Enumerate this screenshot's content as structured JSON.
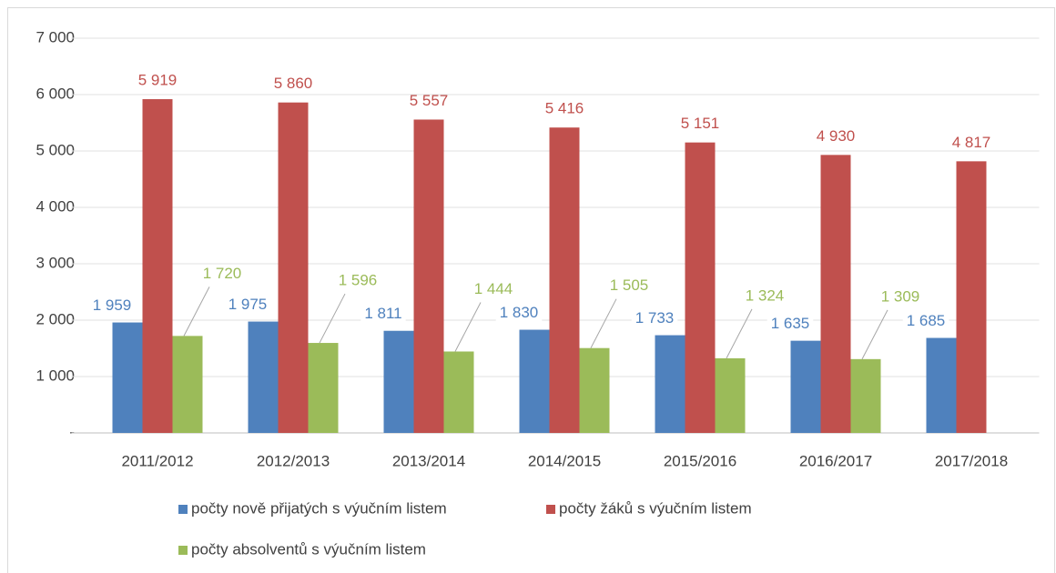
{
  "chart_data": {
    "type": "bar",
    "categories": [
      "2011/2012",
      "2012/2013",
      "2013/2014",
      "2014/2015",
      "2015/2016",
      "2016/2017",
      "2017/2018"
    ],
    "series": [
      {
        "name": "počty nově přijatých s výučním listem",
        "color": "#4f81bd",
        "values": [
          1959,
          1975,
          1811,
          1830,
          1733,
          1635,
          1685
        ],
        "value_labels": [
          "1 959",
          "1 975",
          "1 811",
          "1 830",
          "1 733",
          "1 635",
          "1 685"
        ]
      },
      {
        "name": "počty žáků s výučním listem",
        "color": "#c0504d",
        "values": [
          5919,
          5860,
          5557,
          5416,
          5151,
          4930,
          4817
        ],
        "value_labels": [
          "5 919",
          "5 860",
          "5 557",
          "5 416",
          "5 151",
          "4 930",
          "4 817"
        ]
      },
      {
        "name": "počty absolventů s výučním listem",
        "color": "#9bbb59",
        "values": [
          1720,
          1596,
          1444,
          1505,
          1324,
          1309,
          null
        ],
        "value_labels": [
          "1 720",
          "1 596",
          "1 444",
          "1 505",
          "1 324",
          "1 309",
          null
        ]
      }
    ],
    "ylim": [
      0,
      7000
    ],
    "yticks": [
      {
        "value": 0,
        "label": "-"
      },
      {
        "value": 1000,
        "label": "1 000"
      },
      {
        "value": 2000,
        "label": "2 000"
      },
      {
        "value": 3000,
        "label": "3 000"
      },
      {
        "value": 4000,
        "label": "4 000"
      },
      {
        "value": 5000,
        "label": "5 000"
      },
      {
        "value": 6000,
        "label": "6 000"
      },
      {
        "value": 7000,
        "label": "7 000"
      }
    ],
    "grid": true
  }
}
